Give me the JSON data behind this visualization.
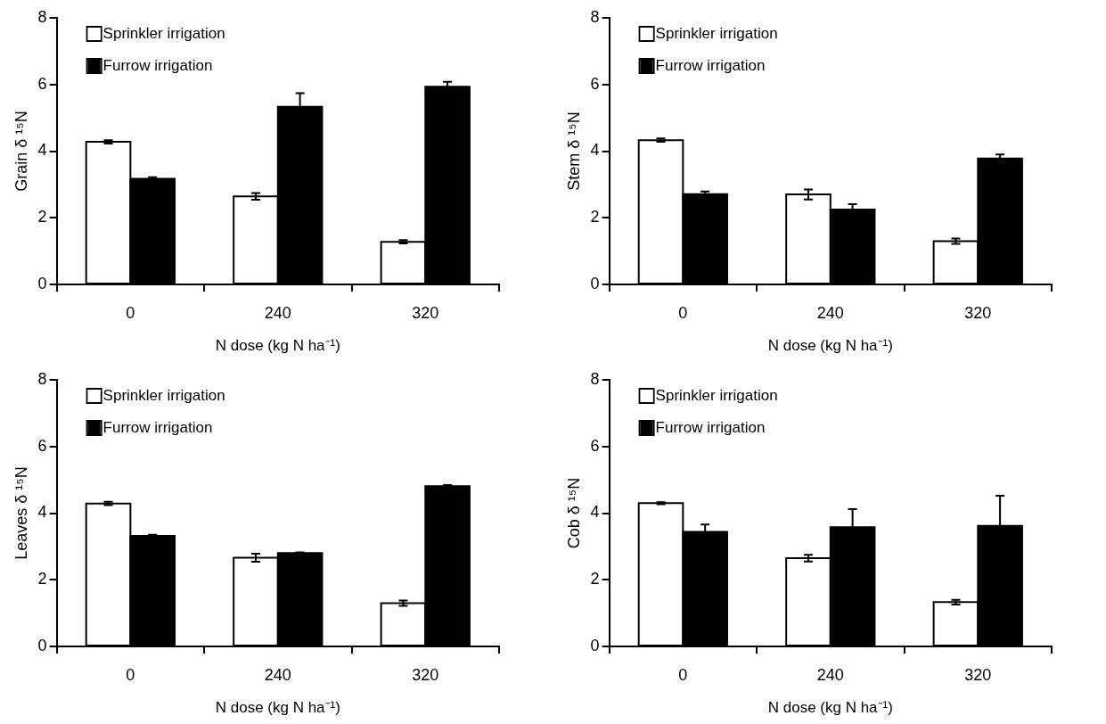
{
  "chart_data": [
    {
      "type": "bar",
      "ylabel": "Grain δ ¹⁵N",
      "xlabel": "N dose (kg N ha⁻¹)",
      "categories": [
        "0",
        "240",
        "320"
      ],
      "ylim": [
        0,
        8
      ],
      "yticks": [
        0,
        2,
        4,
        6,
        8
      ],
      "grid": false,
      "legend": "top left",
      "series": [
        {
          "name": "Sprinkler irrigation",
          "color": "#ffffff",
          "values": [
            4.28,
            2.64,
            1.28
          ],
          "errors": [
            0.05,
            0.1,
            0.05
          ]
        },
        {
          "name": "Furrow irrigation",
          "color": "#000000",
          "values": [
            3.17,
            5.33,
            5.93
          ],
          "errors": [
            0.05,
            0.41,
            0.15
          ]
        }
      ]
    },
    {
      "type": "bar",
      "ylabel": "Stem δ ¹⁵N",
      "xlabel": "N dose (kg N ha⁻¹)",
      "categories": [
        "0",
        "240",
        "320"
      ],
      "ylim": [
        0,
        8
      ],
      "yticks": [
        0,
        2,
        4,
        6,
        8
      ],
      "grid": false,
      "legend": "top left",
      "series": [
        {
          "name": "Sprinkler irrigation",
          "color": "#ffffff",
          "values": [
            4.33,
            2.7,
            1.3
          ],
          "errors": [
            0.05,
            0.15,
            0.08
          ]
        },
        {
          "name": "Furrow irrigation",
          "color": "#000000",
          "values": [
            2.71,
            2.25,
            3.78
          ],
          "errors": [
            0.08,
            0.16,
            0.12
          ]
        }
      ]
    },
    {
      "type": "bar",
      "ylabel": "Leaves δ ¹⁵N",
      "xlabel": "N dose (kg N ha⁻¹)",
      "categories": [
        "0",
        "240",
        "320"
      ],
      "ylim": [
        0,
        8
      ],
      "yticks": [
        0,
        2,
        4,
        6,
        8
      ],
      "grid": false,
      "legend": "top left",
      "series": [
        {
          "name": "Sprinkler irrigation",
          "color": "#ffffff",
          "values": [
            4.29,
            2.66,
            1.3
          ],
          "errors": [
            0.05,
            0.12,
            0.08
          ]
        },
        {
          "name": "Furrow irrigation",
          "color": "#000000",
          "values": [
            3.32,
            2.8,
            4.81
          ],
          "errors": [
            0.03,
            0.02,
            0.03
          ]
        }
      ]
    },
    {
      "type": "bar",
      "ylabel": "Cob δ ¹⁵N",
      "xlabel": "N dose (kg N ha⁻¹)",
      "categories": [
        "0",
        "240",
        "320"
      ],
      "ylim": [
        0,
        8
      ],
      "yticks": [
        0,
        2,
        4,
        6,
        8
      ],
      "grid": false,
      "legend": "top left",
      "series": [
        {
          "name": "Sprinkler irrigation",
          "color": "#ffffff",
          "values": [
            4.3,
            2.65,
            1.33
          ],
          "errors": [
            0.03,
            0.1,
            0.07
          ]
        },
        {
          "name": "Furrow irrigation",
          "color": "#000000",
          "values": [
            3.44,
            3.58,
            3.62
          ],
          "errors": [
            0.22,
            0.54,
            0.9
          ]
        }
      ]
    }
  ]
}
